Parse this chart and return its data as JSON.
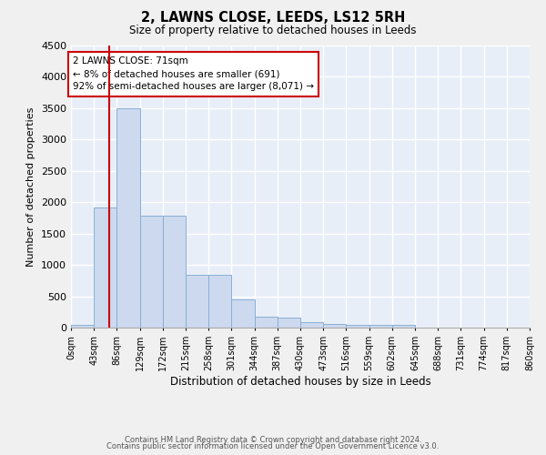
{
  "title": "2, LAWNS CLOSE, LEEDS, LS12 5RH",
  "subtitle": "Size of property relative to detached houses in Leeds",
  "xlabel": "Distribution of detached houses by size in Leeds",
  "ylabel": "Number of detached properties",
  "bin_edges": [
    0,
    43,
    86,
    129,
    172,
    215,
    258,
    301,
    344,
    387,
    430,
    473,
    516,
    559,
    602,
    645,
    688,
    731,
    774,
    817,
    860
  ],
  "bin_labels": [
    "0sqm",
    "43sqm",
    "86sqm",
    "129sqm",
    "172sqm",
    "215sqm",
    "258sqm",
    "301sqm",
    "344sqm",
    "387sqm",
    "430sqm",
    "473sqm",
    "516sqm",
    "559sqm",
    "602sqm",
    "645sqm",
    "688sqm",
    "731sqm",
    "774sqm",
    "817sqm",
    "860sqm"
  ],
  "bar_heights": [
    50,
    1920,
    3500,
    1780,
    1780,
    840,
    840,
    450,
    175,
    165,
    90,
    60,
    50,
    50,
    45,
    0,
    0,
    0,
    0,
    0
  ],
  "bar_color": "#ccd9ee",
  "bar_edge_color": "#8aafd4",
  "ylim": [
    0,
    4500
  ],
  "yticks": [
    0,
    500,
    1000,
    1500,
    2000,
    2500,
    3000,
    3500,
    4000,
    4500
  ],
  "property_line_x": 71,
  "property_line_color": "#cc0000",
  "annotation_text": "2 LAWNS CLOSE: 71sqm\n← 8% of detached houses are smaller (691)\n92% of semi-detached houses are larger (8,071) →",
  "annotation_box_color": "#ffffff",
  "annotation_box_edge": "#cc0000",
  "bg_color": "#e8eef8",
  "grid_color": "#ffffff",
  "footer_line1": "Contains HM Land Registry data © Crown copyright and database right 2024.",
  "footer_line2": "Contains public sector information licensed under the Open Government Licence v3.0."
}
